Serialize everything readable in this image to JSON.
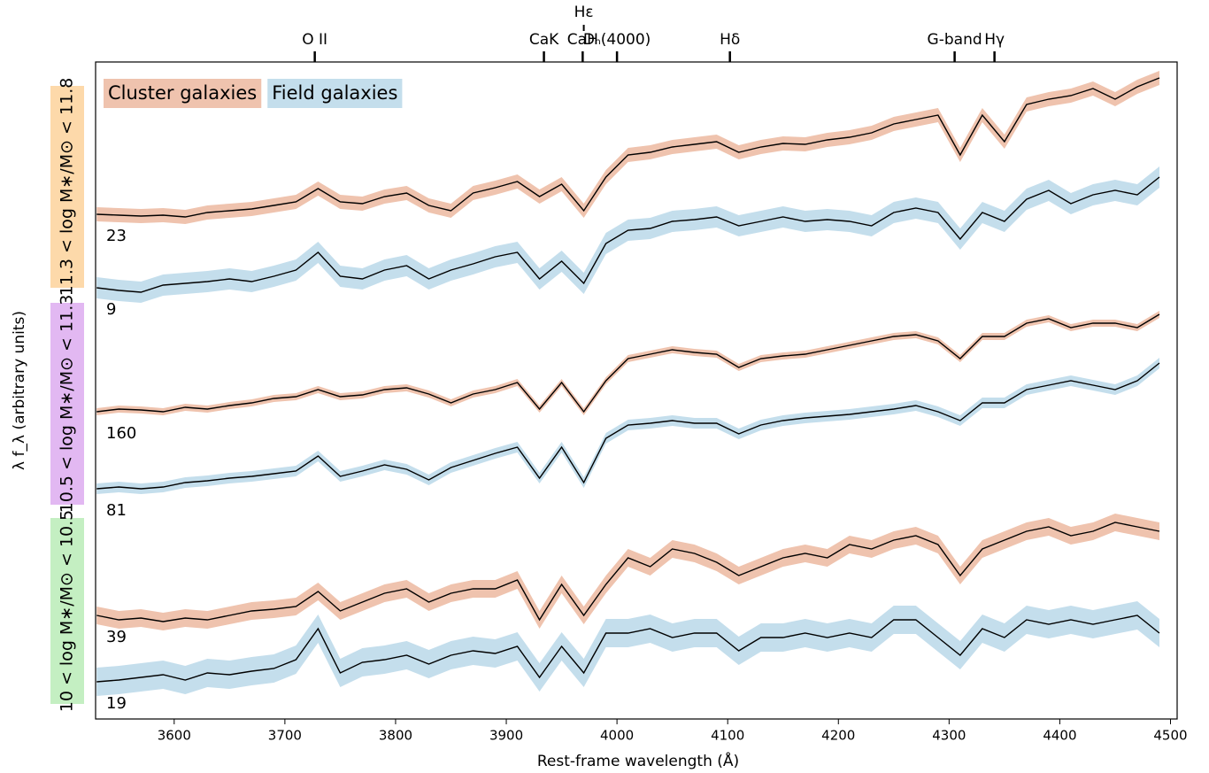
{
  "chart_data": {
    "type": "spectrum",
    "x_label": "Rest-frame wavelength (Å)",
    "y_label": "λ f_λ  (arbitrary units)",
    "xlim": [
      3529,
      4506
    ],
    "ylim": [
      0,
      742
    ],
    "xticks": [
      3600,
      3700,
      3800,
      3900,
      4000,
      4100,
      4200,
      4300,
      4400,
      4500
    ],
    "lines": [
      {
        "label": "O II",
        "x": 3727
      },
      {
        "label": "CaK",
        "x": 3934
      },
      {
        "label": "CaH",
        "x": 3969
      },
      {
        "label": "Hε",
        "x": 3970,
        "raised": true
      },
      {
        "label": "Dₙ(4000)",
        "x": 4000
      },
      {
        "label": "Hδ",
        "x": 4102
      },
      {
        "label": "G-band",
        "x": 4305
      },
      {
        "label": "Hγ",
        "x": 4341
      }
    ],
    "legend": [
      {
        "name": "Cluster galaxies",
        "color": "#efc3ae"
      },
      {
        "name": "Field galaxies",
        "color": "#c4deec"
      }
    ],
    "groups": [
      {
        "label": "11.3 < log M∗/M⊙ < 11.8",
        "color": "#fdd9aa"
      },
      {
        "label": "10.5 < log M∗/M⊙ < 11.3",
        "color": "#e2b8f2"
      },
      {
        "label": "10 < log M∗/M⊙ < 10.5",
        "color": "#c4efc2"
      }
    ],
    "x": [
      3530,
      3550,
      3570,
      3590,
      3610,
      3630,
      3650,
      3670,
      3690,
      3710,
      3730,
      3750,
      3770,
      3790,
      3810,
      3830,
      3850,
      3870,
      3890,
      3910,
      3930,
      3950,
      3970,
      3990,
      4010,
      4030,
      4050,
      4070,
      4090,
      4110,
      4130,
      4150,
      4170,
      4190,
      4210,
      4230,
      4250,
      4270,
      4290,
      4310,
      4330,
      4350,
      4370,
      4390,
      4410,
      4430,
      4450,
      4470,
      4490
    ],
    "series": [
      {
        "legend": 0,
        "group": 0,
        "n": 23,
        "error": 8,
        "values": [
          570,
          569,
          568,
          569,
          567,
          572,
          574,
          576,
          580,
          584,
          599,
          584,
          582,
          590,
          594,
          580,
          574,
          594,
          600,
          607,
          590,
          604,
          574,
          612,
          637,
          640,
          646,
          649,
          652,
          640,
          646,
          650,
          649,
          654,
          657,
          662,
          672,
          677,
          682,
          637,
          682,
          652,
          694,
          700,
          704,
          712,
          700,
          714,
          724
        ]
      },
      {
        "legend": 1,
        "group": 0,
        "n": 9,
        "error": 12,
        "values": [
          487,
          484,
          482,
          490,
          492,
          494,
          497,
          494,
          500,
          507,
          527,
          500,
          497,
          507,
          512,
          497,
          507,
          514,
          522,
          527,
          497,
          517,
          492,
          537,
          552,
          554,
          562,
          564,
          567,
          557,
          562,
          567,
          562,
          564,
          562,
          557,
          572,
          577,
          572,
          542,
          572,
          562,
          587,
          597,
          582,
          592,
          597,
          592,
          612
        ]
      },
      {
        "legend": 0,
        "group": 1,
        "n": 160,
        "error": 4,
        "values": [
          347,
          350,
          349,
          347,
          352,
          350,
          354,
          357,
          362,
          364,
          372,
          364,
          366,
          372,
          374,
          367,
          357,
          367,
          372,
          380,
          350,
          380,
          347,
          382,
          407,
          412,
          417,
          414,
          412,
          397,
          407,
          410,
          412,
          417,
          422,
          427,
          432,
          434,
          427,
          407,
          432,
          432,
          447,
          452,
          442,
          447,
          447,
          442,
          457
        ]
      },
      {
        "legend": 1,
        "group": 1,
        "n": 81,
        "error": 6,
        "values": [
          260,
          262,
          260,
          262,
          267,
          269,
          272,
          274,
          277,
          280,
          297,
          274,
          280,
          287,
          282,
          270,
          284,
          292,
          300,
          307,
          272,
          307,
          267,
          317,
          332,
          334,
          337,
          334,
          334,
          322,
          332,
          337,
          340,
          342,
          344,
          347,
          350,
          354,
          347,
          337,
          357,
          357,
          372,
          377,
          382,
          377,
          372,
          382,
          402
        ]
      },
      {
        "legend": 0,
        "group": 2,
        "n": 39,
        "error": 10,
        "values": [
          117,
          112,
          114,
          110,
          114,
          112,
          117,
          122,
          124,
          127,
          144,
          122,
          132,
          142,
          147,
          132,
          142,
          147,
          147,
          157,
          112,
          152,
          117,
          152,
          182,
          172,
          192,
          187,
          177,
          162,
          172,
          182,
          187,
          182,
          197,
          192,
          202,
          207,
          197,
          162,
          192,
          202,
          212,
          217,
          207,
          212,
          222,
          217,
          212
        ]
      },
      {
        "legend": 1,
        "group": 2,
        "n": 19,
        "error": 16,
        "values": [
          42,
          44,
          47,
          50,
          44,
          52,
          50,
          54,
          57,
          67,
          102,
          52,
          64,
          67,
          72,
          62,
          72,
          77,
          74,
          82,
          47,
          82,
          52,
          97,
          97,
          102,
          92,
          97,
          97,
          77,
          92,
          92,
          97,
          92,
          97,
          92,
          112,
          112,
          92,
          72,
          102,
          92,
          112,
          107,
          112,
          107,
          112,
          117,
          97
        ]
      }
    ]
  }
}
